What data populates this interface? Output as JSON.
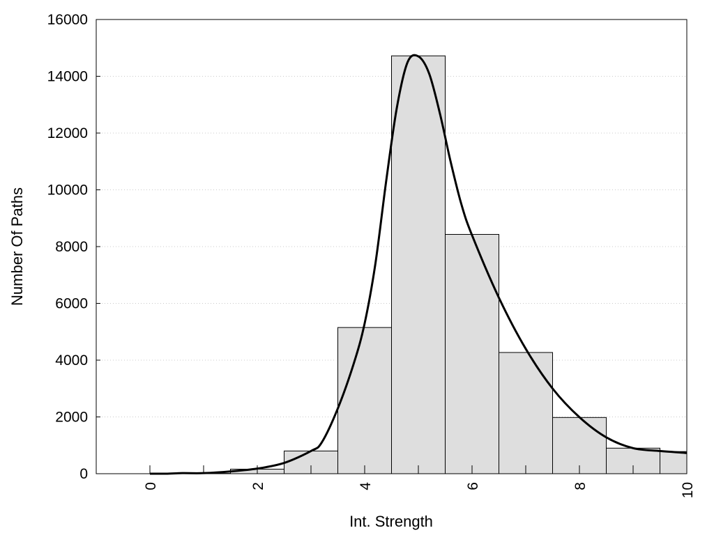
{
  "chart_data": {
    "type": "bar",
    "title": "",
    "xlabel": "Int. Strength",
    "ylabel": "Number Of Paths",
    "xlim": [
      -1,
      10
    ],
    "ylim": [
      0,
      16000
    ],
    "xticks": [
      "0",
      "2",
      "4",
      "6",
      "8",
      "10"
    ],
    "yticks": [
      "0",
      "2000",
      "4000",
      "6000",
      "8000",
      "10000",
      "12000",
      "14000",
      "16000"
    ],
    "grid": "horizontal dotted",
    "legend": "none",
    "bar_width": 1,
    "bars": [
      {
        "x": 0,
        "value": 0
      },
      {
        "x": 1,
        "value": 10
      },
      {
        "x": 2,
        "value": 160
      },
      {
        "x": 3,
        "value": 800
      },
      {
        "x": 4,
        "value": 5150
      },
      {
        "x": 5,
        "value": 14720
      },
      {
        "x": 6,
        "value": 8430
      },
      {
        "x": 7,
        "value": 4270
      },
      {
        "x": 8,
        "value": 1980
      },
      {
        "x": 9,
        "value": 900
      },
      {
        "x": 10,
        "value": 780
      }
    ],
    "density_curve": {
      "x": [
        0,
        0.3,
        0.6,
        1.0,
        1.5,
        2.0,
        2.5,
        3.0,
        3.2,
        3.5,
        3.8,
        4.0,
        4.2,
        4.4,
        4.6,
        4.8,
        5.0,
        5.2,
        5.4,
        5.6,
        5.8,
        6.0,
        6.5,
        7.0,
        7.5,
        8.0,
        8.5,
        9.0,
        9.5,
        10.0
      ],
      "y": [
        0,
        0,
        20,
        20,
        80,
        180,
        380,
        800,
        1100,
        2300,
        3900,
        5300,
        7400,
        10300,
        12900,
        14500,
        14700,
        14100,
        12700,
        11000,
        9500,
        8400,
        6200,
        4400,
        3000,
        1990,
        1280,
        900,
        800,
        730
      ]
    },
    "colors": {
      "bar_fill": "#dedede",
      "bar_stroke": "#000000",
      "curve": "#000000",
      "grid": "#c8c8c8"
    }
  }
}
